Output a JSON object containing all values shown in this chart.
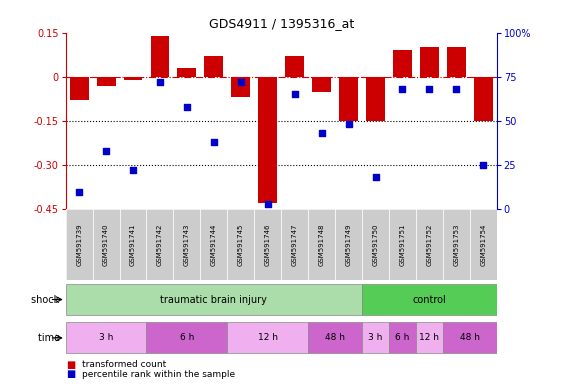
{
  "title": "GDS4911 / 1395316_at",
  "samples": [
    "GSM591739",
    "GSM591740",
    "GSM591741",
    "GSM591742",
    "GSM591743",
    "GSM591744",
    "GSM591745",
    "GSM591746",
    "GSM591747",
    "GSM591748",
    "GSM591749",
    "GSM591750",
    "GSM591751",
    "GSM591752",
    "GSM591753",
    "GSM591754"
  ],
  "red_bars": [
    -0.08,
    -0.03,
    -0.01,
    0.14,
    0.03,
    0.07,
    -0.07,
    -0.43,
    0.07,
    -0.05,
    -0.15,
    -0.15,
    0.09,
    0.1,
    0.1,
    -0.15
  ],
  "blue_vals": [
    10,
    33,
    22,
    72,
    58,
    38,
    72,
    3,
    65,
    43,
    48,
    18,
    68,
    68,
    68,
    25
  ],
  "ylim_left": [
    -0.45,
    0.15
  ],
  "ylim_right": [
    0,
    100
  ],
  "yticks_left": [
    0.15,
    0.0,
    -0.15,
    -0.3,
    -0.45
  ],
  "yticks_right": [
    100,
    75,
    50,
    25,
    0
  ],
  "dotted_lines": [
    -0.15,
    -0.3
  ],
  "bar_color": "#cc0000",
  "dot_color": "#0000cc",
  "legend_items": [
    "transformed count",
    "percentile rank within the sample"
  ],
  "shock_label": "shock",
  "time_label": "time",
  "tbi_color": "#aaddaa",
  "ctrl_color": "#55cc55",
  "time_colors": [
    "#f0b0f0",
    "#cc66cc",
    "#f0b0f0",
    "#cc66cc",
    "#f0b0f0",
    "#cc66cc",
    "#f0b0f0",
    "#cc66cc"
  ],
  "time_groups": [
    {
      "label": "3 h",
      "start": 0,
      "end": 3
    },
    {
      "label": "6 h",
      "start": 3,
      "end": 6
    },
    {
      "label": "12 h",
      "start": 6,
      "end": 9
    },
    {
      "label": "48 h",
      "start": 9,
      "end": 11
    },
    {
      "label": "3 h",
      "start": 11,
      "end": 12
    },
    {
      "label": "6 h",
      "start": 12,
      "end": 13
    },
    {
      "label": "12 h",
      "start": 13,
      "end": 14
    },
    {
      "label": "48 h",
      "start": 14,
      "end": 16
    }
  ]
}
